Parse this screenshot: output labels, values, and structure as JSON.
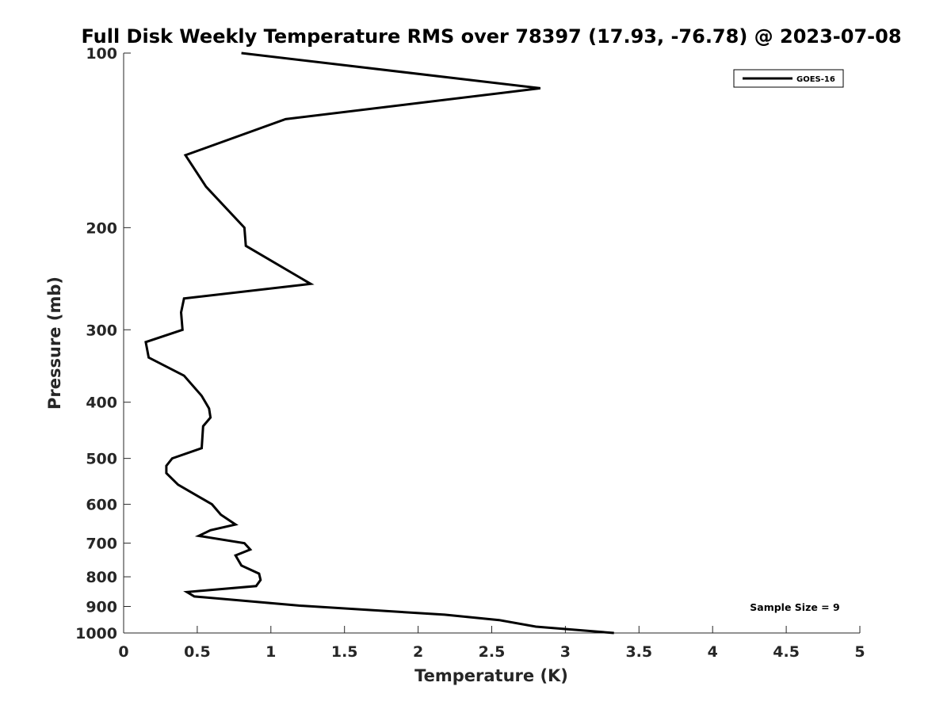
{
  "chart_data": {
    "type": "line",
    "title": "Full Disk Weekly Temperature RMS over 78397 (17.93, -76.78) @ 2023-07-08",
    "xlabel": "Temperature (K)",
    "ylabel": "Pressure (mb)",
    "xlim": [
      0,
      5
    ],
    "ylim": [
      100,
      1000
    ],
    "yscale": "log",
    "y_reversed": true,
    "grid": false,
    "legend_position": "top-right",
    "x_ticks": [
      "0",
      "0.5",
      "1",
      "1.5",
      "2",
      "2.5",
      "3",
      "3.5",
      "4",
      "4.5",
      "5"
    ],
    "y_ticks": [
      "100",
      "200",
      "300",
      "400",
      "500",
      "600",
      "700",
      "800",
      "900",
      "1000"
    ],
    "series": [
      {
        "name": "GOES-16",
        "color": "#000000",
        "points": [
          [
            0.8,
            100
          ],
          [
            2.83,
            115
          ],
          [
            1.1,
            130
          ],
          [
            0.42,
            150
          ],
          [
            0.56,
            170
          ],
          [
            0.82,
            200
          ],
          [
            0.83,
            215
          ],
          [
            1.27,
            250
          ],
          [
            0.41,
            265
          ],
          [
            0.39,
            280
          ],
          [
            0.4,
            300
          ],
          [
            0.15,
            315
          ],
          [
            0.17,
            335
          ],
          [
            0.41,
            360
          ],
          [
            0.53,
            390
          ],
          [
            0.58,
            410
          ],
          [
            0.59,
            425
          ],
          [
            0.54,
            440
          ],
          [
            0.53,
            480
          ],
          [
            0.33,
            500
          ],
          [
            0.29,
            515
          ],
          [
            0.29,
            530
          ],
          [
            0.37,
            555
          ],
          [
            0.6,
            600
          ],
          [
            0.66,
            625
          ],
          [
            0.76,
            650
          ],
          [
            0.59,
            665
          ],
          [
            0.51,
            680
          ],
          [
            0.82,
            700
          ],
          [
            0.86,
            718
          ],
          [
            0.76,
            735
          ],
          [
            0.8,
            765
          ],
          [
            0.92,
            790
          ],
          [
            0.93,
            810
          ],
          [
            0.9,
            830
          ],
          [
            0.43,
            850
          ],
          [
            0.48,
            865
          ],
          [
            0.82,
            880
          ],
          [
            1.19,
            897
          ],
          [
            2.18,
            930
          ],
          [
            2.55,
            950
          ],
          [
            2.8,
            975
          ],
          [
            3.33,
            1000
          ]
        ]
      }
    ],
    "annotation": "Sample Size = 9"
  }
}
